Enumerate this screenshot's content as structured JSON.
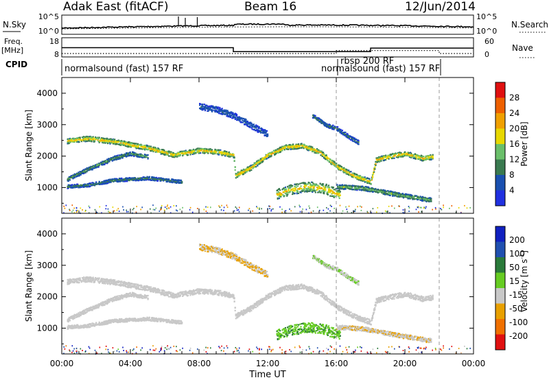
{
  "header": {
    "radar_title": "Adak East (fitACF)",
    "beam": "Beam 16",
    "date": "12/Jun/2014"
  },
  "noise_panel": {
    "left_label": "N.Sky",
    "right_label": "N.Search",
    "left_ticks": [
      "10^5",
      "10^0"
    ],
    "right_ticks": [
      "10^5",
      "10^0"
    ]
  },
  "freq_panel": {
    "left_label_line1": "Freq.",
    "left_label_line2": "[MHz]",
    "left_ticks": [
      "18",
      "8"
    ],
    "right_label": "Nave",
    "right_ticks": [
      "60",
      "0"
    ]
  },
  "cpid_panel": {
    "label": "CPID",
    "programs": [
      "normalsound (fast) 157 RF",
      "rbsp 200 RF",
      "normalsound (fast) 157 RF"
    ]
  },
  "power_panel": {
    "ylabel": "Slant Range [km]",
    "y_ticks": [
      "4000",
      "3000",
      "2000",
      "1000"
    ],
    "colorbar_label": "Power [dB]",
    "colorbar_ticks": [
      "28",
      "24",
      "20",
      "16",
      "12",
      "8",
      "4"
    ],
    "colors": [
      "#2030e0",
      "#1a50b0",
      "#3a7a50",
      "#6abf6a",
      "#e8d800",
      "#f0a000",
      "#ee6000",
      "#e01010"
    ]
  },
  "velocity_panel": {
    "ylabel": "Slant Range [km]",
    "y_ticks": [
      "4000",
      "3000",
      "2000",
      "1000"
    ],
    "colorbar_label": "Velocity [m s",
    "colorbar_unit_sup": "-1",
    "colorbar_unit_close": "]",
    "colorbar_ticks": [
      "200",
      "100",
      "50",
      "15",
      "-15",
      "-50",
      "-100",
      "-200"
    ],
    "colors": [
      "#1020c0",
      "#2050b0",
      "#2a7a3a",
      "#66cc22",
      "#c8c8c8",
      "#e8a000",
      "#f07000",
      "#e01010"
    ]
  },
  "x_axis": {
    "label": "Time UT",
    "ticks": [
      "00:00",
      "04:00",
      "08:00",
      "12:00",
      "16:00",
      "20:00",
      "00:00"
    ]
  },
  "chart_data": {
    "type": "heatmap",
    "x_unit": "hours UT",
    "xlim": [
      0,
      24
    ],
    "range_km_ylim": [
      180,
      4500
    ],
    "mode_change_hours": [
      16.0,
      22.0
    ],
    "frequency_mhz": [
      {
        "t": 0.0,
        "value": 13.5
      },
      {
        "t": 10.0,
        "value": 13.5
      },
      {
        "t": 10.0,
        "value": 10.5
      },
      {
        "t": 18.0,
        "value": 10.5
      },
      {
        "t": 18.0,
        "value": 13.2
      },
      {
        "t": 24.0,
        "value": 13.2
      }
    ],
    "nave": [
      {
        "t": 0.0,
        "value": 15
      },
      {
        "t": 16.0,
        "value": 15
      },
      {
        "t": 16.0,
        "value": 28
      },
      {
        "t": 22.0,
        "value": 28
      },
      {
        "t": 22.0,
        "value": 15
      },
      {
        "t": 24.0,
        "value": 15
      }
    ],
    "scatter_bands": [
      {
        "name": "main",
        "points": [
          [
            0.3,
            2500
          ],
          [
            1.5,
            2580
          ],
          [
            3,
            2480
          ],
          [
            5,
            2280
          ],
          [
            6.5,
            2060
          ],
          [
            8,
            2200
          ],
          [
            9,
            2160
          ],
          [
            10,
            2050
          ],
          [
            10.1,
            1400
          ],
          [
            11,
            1650
          ],
          [
            12,
            2050
          ],
          [
            13,
            2300
          ],
          [
            14,
            2350
          ],
          [
            15,
            2150
          ],
          [
            16,
            1700
          ],
          [
            17,
            1400
          ],
          [
            18,
            1200
          ],
          [
            18.3,
            1900
          ],
          [
            19,
            2000
          ],
          [
            20,
            2100
          ],
          [
            21,
            1950
          ],
          [
            21.6,
            2000
          ]
        ],
        "width": 160,
        "power_db": 18,
        "velocity": -5
      },
      {
        "name": "lower-left",
        "points": [
          [
            0.3,
            1280
          ],
          [
            1.5,
            1600
          ],
          [
            3,
            1950
          ],
          [
            4,
            2100
          ],
          [
            5,
            2000
          ]
        ],
        "width": 130,
        "power_db": 10,
        "velocity": -5
      },
      {
        "name": "lower-left-2",
        "points": [
          [
            0.3,
            1050
          ],
          [
            1.5,
            1100
          ],
          [
            3,
            1250
          ],
          [
            5,
            1320
          ],
          [
            7,
            1200
          ]
        ],
        "width": 110,
        "power_db": 9,
        "velocity": -5
      },
      {
        "name": "near-range",
        "points": [
          [
            12.5,
            800
          ],
          [
            13.3,
            950
          ],
          [
            14.3,
            1050
          ],
          [
            15.3,
            980
          ],
          [
            16.2,
            780
          ]
        ],
        "width": 320,
        "power_db": 17,
        "velocity": 25
      },
      {
        "name": "post-rbsp",
        "points": [
          [
            16,
            1050
          ],
          [
            17.5,
            1000
          ],
          [
            18.5,
            900
          ],
          [
            20,
            750
          ],
          [
            21.5,
            620
          ]
        ],
        "width": 140,
        "power_db": 12,
        "velocity": -10
      },
      {
        "name": "upper-late",
        "points": [
          [
            14.6,
            3300
          ],
          [
            15.4,
            3000
          ],
          [
            16,
            2900
          ],
          [
            16.8,
            2600
          ],
          [
            17.3,
            2450
          ]
        ],
        "width": 130,
        "power_db": 8,
        "velocity": 10
      },
      {
        "name": "scatter-upper",
        "points": [
          [
            8,
            3600
          ],
          [
            9,
            3500
          ],
          [
            10,
            3300
          ],
          [
            11,
            3000
          ],
          [
            12,
            2700
          ]
        ],
        "width": 200,
        "power_db": 6,
        "velocity": -15
      }
    ]
  }
}
